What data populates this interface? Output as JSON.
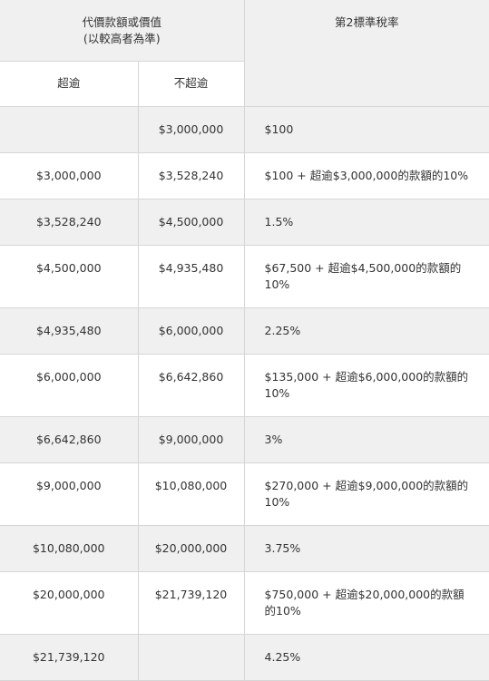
{
  "header": {
    "consideration_line1": "代價款額或價值",
    "consideration_line2": "(以較高者為準)",
    "rate_title": "第2標準稅率",
    "exceeds": "超逾",
    "not_exceeds": "不超逾"
  },
  "rows": [
    {
      "from": "",
      "to": "$3,000,000",
      "rate": "$100"
    },
    {
      "from": "$3,000,000",
      "to": "$3,528,240",
      "rate": "$100 + 超逾$3,000,000的款額的10%"
    },
    {
      "from": "$3,528,240",
      "to": "$4,500,000",
      "rate": "1.5%"
    },
    {
      "from": "$4,500,000",
      "to": "$4,935,480",
      "rate": "$67,500 + 超逾$4,500,000的款額的10%"
    },
    {
      "from": "$4,935,480",
      "to": "$6,000,000",
      "rate": "2.25%"
    },
    {
      "from": "$6,000,000",
      "to": "$6,642,860",
      "rate": "$135,000 + 超逾$6,000,000的款額的10%"
    },
    {
      "from": "$6,642,860",
      "to": "$9,000,000",
      "rate": "3%"
    },
    {
      "from": "$9,000,000",
      "to": "$10,080,000",
      "rate": "$270,000 + 超逾$9,000,000的款額的10%"
    },
    {
      "from": "$10,080,000",
      "to": "$20,000,000",
      "rate": "3.75%"
    },
    {
      "from": "$20,000,000",
      "to": "$21,739,120",
      "rate": "$750,000 + 超逾$20,000,000的款額的10%"
    },
    {
      "from": "$21,739,120",
      "to": "",
      "rate": "4.25%"
    }
  ]
}
